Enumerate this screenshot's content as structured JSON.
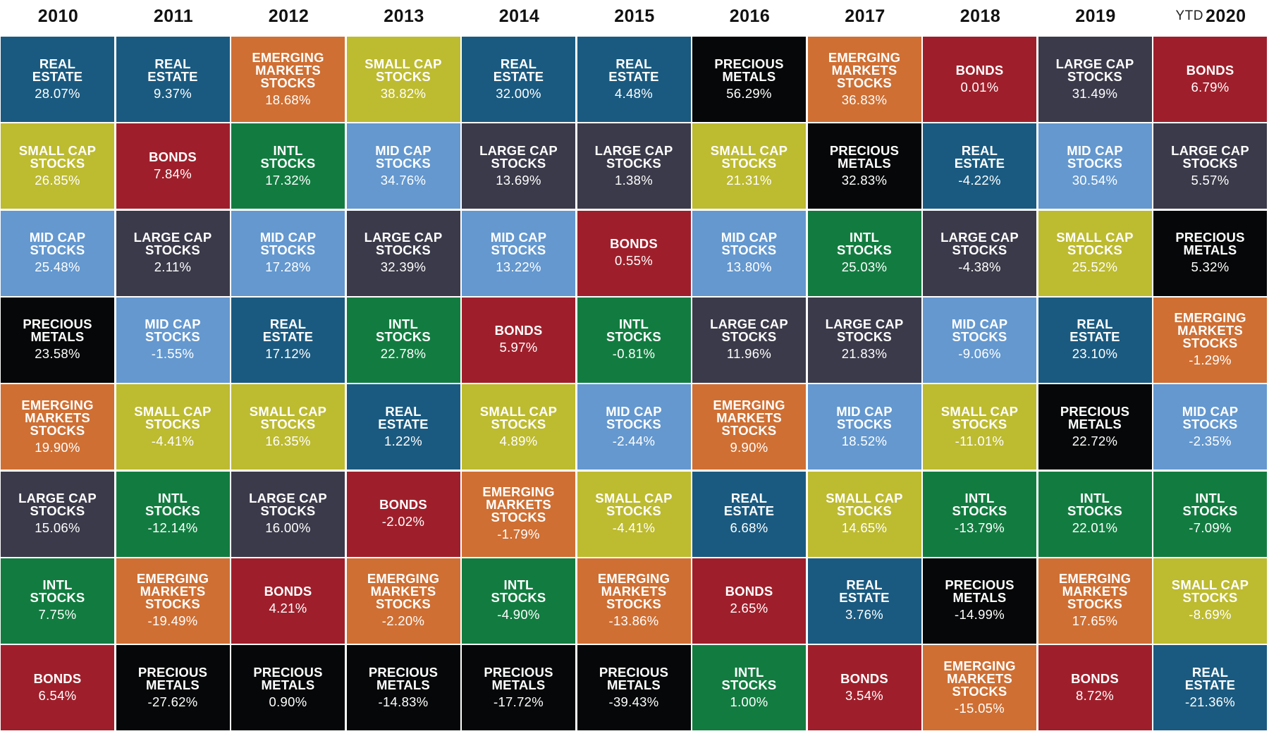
{
  "colors": {
    "real_estate": "#1a5a80",
    "small_cap_stocks": "#bdbb30",
    "mid_cap_stocks": "#6498cf",
    "precious_metals": "#050708",
    "emerging_markets_stocks": "#cf6f33",
    "large_cap_stocks": "#3b3a4a",
    "intl_stocks": "#127c40",
    "bonds": "#9e1f2b"
  },
  "chart_data": {
    "type": "table",
    "columns": [
      {
        "year": "2010",
        "prefix": "",
        "cells": [
          {
            "label": "REAL\nESTATE",
            "value": "28.07%",
            "asset": "real_estate"
          },
          {
            "label": "SMALL CAP\nSTOCKS",
            "value": "26.85%",
            "asset": "small_cap_stocks"
          },
          {
            "label": "MID CAP\nSTOCKS",
            "value": "25.48%",
            "asset": "mid_cap_stocks"
          },
          {
            "label": "PRECIOUS\nMETALS",
            "value": "23.58%",
            "asset": "precious_metals"
          },
          {
            "label": "EMERGING\nMARKETS\nSTOCKS",
            "value": "19.90%",
            "asset": "emerging_markets_stocks"
          },
          {
            "label": "LARGE CAP\nSTOCKS",
            "value": "15.06%",
            "asset": "large_cap_stocks"
          },
          {
            "label": "INTL\nSTOCKS",
            "value": "7.75%",
            "asset": "intl_stocks"
          },
          {
            "label": "BONDS",
            "value": "6.54%",
            "asset": "bonds"
          }
        ]
      },
      {
        "year": "2011",
        "prefix": "",
        "cells": [
          {
            "label": "REAL\nESTATE",
            "value": "9.37%",
            "asset": "real_estate"
          },
          {
            "label": "BONDS",
            "value": "7.84%",
            "asset": "bonds"
          },
          {
            "label": "LARGE CAP\nSTOCKS",
            "value": "2.11%",
            "asset": "large_cap_stocks"
          },
          {
            "label": "MID CAP\nSTOCKS",
            "value": "-1.55%",
            "asset": "mid_cap_stocks"
          },
          {
            "label": "SMALL CAP\nSTOCKS",
            "value": "-4.41%",
            "asset": "small_cap_stocks"
          },
          {
            "label": "INTL\nSTOCKS",
            "value": "-12.14%",
            "asset": "intl_stocks"
          },
          {
            "label": "EMERGING\nMARKETS\nSTOCKS",
            "value": "-19.49%",
            "asset": "emerging_markets_stocks"
          },
          {
            "label": "PRECIOUS\nMETALS",
            "value": "-27.62%",
            "asset": "precious_metals"
          }
        ]
      },
      {
        "year": "2012",
        "prefix": "",
        "cells": [
          {
            "label": "EMERGING\nMARKETS\nSTOCKS",
            "value": "18.68%",
            "asset": "emerging_markets_stocks"
          },
          {
            "label": "INTL\nSTOCKS",
            "value": "17.32%",
            "asset": "intl_stocks"
          },
          {
            "label": "MID CAP\nSTOCKS",
            "value": "17.28%",
            "asset": "mid_cap_stocks"
          },
          {
            "label": "REAL\nESTATE",
            "value": "17.12%",
            "asset": "real_estate"
          },
          {
            "label": "SMALL CAP\nSTOCKS",
            "value": "16.35%",
            "asset": "small_cap_stocks"
          },
          {
            "label": "LARGE CAP\nSTOCKS",
            "value": "16.00%",
            "asset": "large_cap_stocks"
          },
          {
            "label": "BONDS",
            "value": "4.21%",
            "asset": "bonds"
          },
          {
            "label": "PRECIOUS\nMETALS",
            "value": "0.90%",
            "asset": "precious_metals"
          }
        ]
      },
      {
        "year": "2013",
        "prefix": "",
        "cells": [
          {
            "label": "SMALL CAP\nSTOCKS",
            "value": "38.82%",
            "asset": "small_cap_stocks"
          },
          {
            "label": "MID CAP\nSTOCKS",
            "value": "34.76%",
            "asset": "mid_cap_stocks"
          },
          {
            "label": "LARGE CAP\nSTOCKS",
            "value": "32.39%",
            "asset": "large_cap_stocks"
          },
          {
            "label": "INTL\nSTOCKS",
            "value": "22.78%",
            "asset": "intl_stocks"
          },
          {
            "label": "REAL\nESTATE",
            "value": "1.22%",
            "asset": "real_estate"
          },
          {
            "label": "BONDS",
            "value": "-2.02%",
            "asset": "bonds"
          },
          {
            "label": "EMERGING\nMARKETS\nSTOCKS",
            "value": "-2.20%",
            "asset": "emerging_markets_stocks"
          },
          {
            "label": "PRECIOUS\nMETALS",
            "value": "-14.83%",
            "asset": "precious_metals"
          }
        ]
      },
      {
        "year": "2014",
        "prefix": "",
        "cells": [
          {
            "label": "REAL\nESTATE",
            "value": "32.00%",
            "asset": "real_estate"
          },
          {
            "label": "LARGE CAP\nSTOCKS",
            "value": "13.69%",
            "asset": "large_cap_stocks"
          },
          {
            "label": "MID CAP\nSTOCKS",
            "value": "13.22%",
            "asset": "mid_cap_stocks"
          },
          {
            "label": "BONDS",
            "value": "5.97%",
            "asset": "bonds"
          },
          {
            "label": "SMALL CAP\nSTOCKS",
            "value": "4.89%",
            "asset": "small_cap_stocks"
          },
          {
            "label": "EMERGING\nMARKETS\nSTOCKS",
            "value": "-1.79%",
            "asset": "emerging_markets_stocks"
          },
          {
            "label": "INTL\nSTOCKS",
            "value": "-4.90%",
            "asset": "intl_stocks"
          },
          {
            "label": "PRECIOUS\nMETALS",
            "value": "-17.72%",
            "asset": "precious_metals"
          }
        ]
      },
      {
        "year": "2015",
        "prefix": "",
        "cells": [
          {
            "label": "REAL\nESTATE",
            "value": "4.48%",
            "asset": "real_estate"
          },
          {
            "label": "LARGE CAP\nSTOCKS",
            "value": "1.38%",
            "asset": "large_cap_stocks"
          },
          {
            "label": "BONDS",
            "value": "0.55%",
            "asset": "bonds"
          },
          {
            "label": "INTL\nSTOCKS",
            "value": "-0.81%",
            "asset": "intl_stocks"
          },
          {
            "label": "MID CAP\nSTOCKS",
            "value": "-2.44%",
            "asset": "mid_cap_stocks"
          },
          {
            "label": "SMALL CAP\nSTOCKS",
            "value": "-4.41%",
            "asset": "small_cap_stocks"
          },
          {
            "label": "EMERGING\nMARKETS\nSTOCKS",
            "value": "-13.86%",
            "asset": "emerging_markets_stocks"
          },
          {
            "label": "PRECIOUS\nMETALS",
            "value": "-39.43%",
            "asset": "precious_metals"
          }
        ]
      },
      {
        "year": "2016",
        "prefix": "",
        "cells": [
          {
            "label": "PRECIOUS\nMETALS",
            "value": "56.29%",
            "asset": "precious_metals"
          },
          {
            "label": "SMALL CAP\nSTOCKS",
            "value": "21.31%",
            "asset": "small_cap_stocks"
          },
          {
            "label": "MID CAP\nSTOCKS",
            "value": "13.80%",
            "asset": "mid_cap_stocks"
          },
          {
            "label": "LARGE CAP\nSTOCKS",
            "value": "11.96%",
            "asset": "large_cap_stocks"
          },
          {
            "label": "EMERGING\nMARKETS\nSTOCKS",
            "value": "9.90%",
            "asset": "emerging_markets_stocks"
          },
          {
            "label": "REAL\nESTATE",
            "value": "6.68%",
            "asset": "real_estate"
          },
          {
            "label": "BONDS",
            "value": "2.65%",
            "asset": "bonds"
          },
          {
            "label": "INTL\nSTOCKS",
            "value": "1.00%",
            "asset": "intl_stocks"
          }
        ]
      },
      {
        "year": "2017",
        "prefix": "",
        "cells": [
          {
            "label": "EMERGING\nMARKETS\nSTOCKS",
            "value": "36.83%",
            "asset": "emerging_markets_stocks"
          },
          {
            "label": "PRECIOUS\nMETALS",
            "value": "32.83%",
            "asset": "precious_metals"
          },
          {
            "label": "INTL\nSTOCKS",
            "value": "25.03%",
            "asset": "intl_stocks"
          },
          {
            "label": "LARGE CAP\nSTOCKS",
            "value": "21.83%",
            "asset": "large_cap_stocks"
          },
          {
            "label": "MID CAP\nSTOCKS",
            "value": "18.52%",
            "asset": "mid_cap_stocks"
          },
          {
            "label": "SMALL CAP\nSTOCKS",
            "value": "14.65%",
            "asset": "small_cap_stocks"
          },
          {
            "label": "REAL\nESTATE",
            "value": "3.76%",
            "asset": "real_estate"
          },
          {
            "label": "BONDS",
            "value": "3.54%",
            "asset": "bonds"
          }
        ]
      },
      {
        "year": "2018",
        "prefix": "",
        "cells": [
          {
            "label": "BONDS",
            "value": "0.01%",
            "asset": "bonds"
          },
          {
            "label": "REAL\nESTATE",
            "value": "-4.22%",
            "asset": "real_estate"
          },
          {
            "label": "LARGE CAP\nSTOCKS",
            "value": "-4.38%",
            "asset": "large_cap_stocks"
          },
          {
            "label": "MID CAP\nSTOCKS",
            "value": "-9.06%",
            "asset": "mid_cap_stocks"
          },
          {
            "label": "SMALL CAP\nSTOCKS",
            "value": "-11.01%",
            "asset": "small_cap_stocks"
          },
          {
            "label": "INTL\nSTOCKS",
            "value": "-13.79%",
            "asset": "intl_stocks"
          },
          {
            "label": "PRECIOUS\nMETALS",
            "value": "-14.99%",
            "asset": "precious_metals"
          },
          {
            "label": "EMERGING\nMARKETS\nSTOCKS",
            "value": "-15.05%",
            "asset": "emerging_markets_stocks"
          }
        ]
      },
      {
        "year": "2019",
        "prefix": "",
        "cells": [
          {
            "label": "LARGE CAP\nSTOCKS",
            "value": "31.49%",
            "asset": "large_cap_stocks"
          },
          {
            "label": "MID CAP\nSTOCKS",
            "value": "30.54%",
            "asset": "mid_cap_stocks"
          },
          {
            "label": "SMALL CAP\nSTOCKS",
            "value": "25.52%",
            "asset": "small_cap_stocks"
          },
          {
            "label": "REAL\nESTATE",
            "value": "23.10%",
            "asset": "real_estate"
          },
          {
            "label": "PRECIOUS\nMETALS",
            "value": "22.72%",
            "asset": "precious_metals"
          },
          {
            "label": "INTL\nSTOCKS",
            "value": "22.01%",
            "asset": "intl_stocks"
          },
          {
            "label": "EMERGING\nMARKETS\nSTOCKS",
            "value": "17.65%",
            "asset": "emerging_markets_stocks"
          },
          {
            "label": "BONDS",
            "value": "8.72%",
            "asset": "bonds"
          }
        ]
      },
      {
        "year": "2020",
        "prefix": "YTD",
        "cells": [
          {
            "label": "BONDS",
            "value": "6.79%",
            "asset": "bonds"
          },
          {
            "label": "LARGE CAP\nSTOCKS",
            "value": "5.57%",
            "asset": "large_cap_stocks"
          },
          {
            "label": "PRECIOUS\nMETALS",
            "value": "5.32%",
            "asset": "precious_metals"
          },
          {
            "label": "EMERGING\nMARKETS\nSTOCKS",
            "value": "-1.29%",
            "asset": "emerging_markets_stocks"
          },
          {
            "label": "MID CAP\nSTOCKS",
            "value": "-2.35%",
            "asset": "mid_cap_stocks"
          },
          {
            "label": "INTL\nSTOCKS",
            "value": "-7.09%",
            "asset": "intl_stocks"
          },
          {
            "label": "SMALL CAP\nSTOCKS",
            "value": "-8.69%",
            "asset": "small_cap_stocks"
          },
          {
            "label": "REAL\nESTATE",
            "value": "-21.36%",
            "asset": "real_estate"
          }
        ]
      }
    ]
  }
}
